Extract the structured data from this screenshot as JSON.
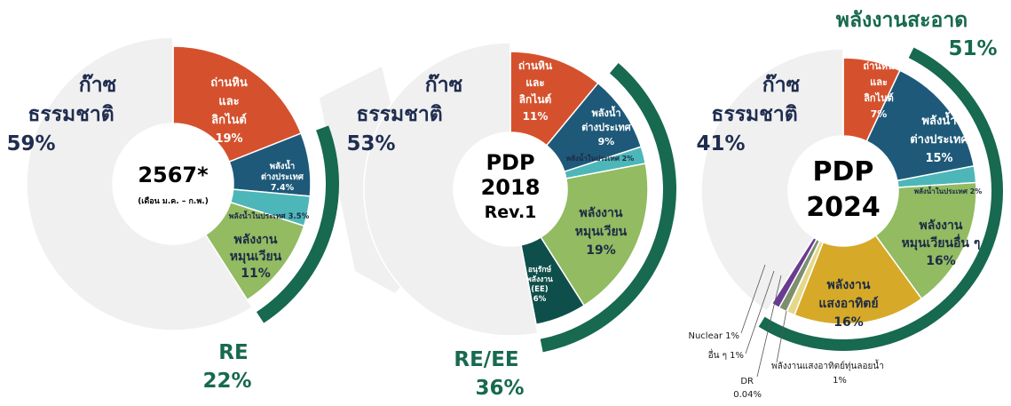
{
  "colors": {
    "gas": "#f0f0f0",
    "coal": "#d5512d",
    "hydro_import": "#1e5979",
    "hydro_domestic": "#4db6b8",
    "re": "#92bb62",
    "ee": "#0f4f4b",
    "solar": "#d6a928",
    "nuclear": "#6a3c91",
    "other": "#7c9070",
    "dr": "#b8c9a0",
    "floating_solar": "#e6d88a",
    "outer_ring": "#17694f",
    "dark_text": "#1f2d4f"
  },
  "chart_data": [
    {
      "type": "pie",
      "center_lines": [
        "2567*",
        "(เดือน ม.ค. – ก.พ.)"
      ],
      "slices": [
        {
          "label_lines": [
            "ถ่านหิน",
            "และ",
            "ลิกไนต์",
            "19%"
          ],
          "value": 19,
          "color_key": "coal"
        },
        {
          "label_lines": [
            "พลังน้ำ",
            "ต่างประเทศ",
            "7.4%"
          ],
          "value": 7.4,
          "color_key": "hydro_import"
        },
        {
          "label_lines": [
            "พลังน้ำในประเทศ 3.5%"
          ],
          "value": 3.5,
          "color_key": "hydro_domestic"
        },
        {
          "label_lines": [
            "พลังงาน",
            "หมุนเวียน",
            "11%"
          ],
          "value": 11,
          "color_key": "re"
        },
        {
          "label_lines": [],
          "value": 59,
          "color_key": "gas"
        }
      ],
      "outside_labels": {
        "gas": [
          "ก๊าซ",
          "ธรรมชาติ",
          "59%"
        ],
        "ring": [
          "RE",
          "22%"
        ]
      },
      "ring_value": 22
    },
    {
      "type": "pie",
      "center_lines": [
        "PDP",
        "2018",
        "Rev.1"
      ],
      "slices": [
        {
          "label_lines": [
            "ถ่านหิน",
            "และ",
            "ลิกไนต์",
            "11%"
          ],
          "value": 11,
          "color_key": "coal"
        },
        {
          "label_lines": [
            "พลังน้ำ",
            "ต่างประเทศ",
            "9%"
          ],
          "value": 9,
          "color_key": "hydro_import"
        },
        {
          "label_lines": [
            "พลังน้ำในประเทศ 2%"
          ],
          "value": 2,
          "color_key": "hydro_domestic"
        },
        {
          "label_lines": [
            "พลังงาน",
            "หมุนเวียน",
            "19%"
          ],
          "value": 19,
          "color_key": "re"
        },
        {
          "label_lines": [
            "อนุรักษ์",
            "พลังงาน",
            "(EE)",
            "6%"
          ],
          "value": 6,
          "color_key": "ee"
        },
        {
          "label_lines": [],
          "value": 53,
          "color_key": "gas"
        }
      ],
      "outside_labels": {
        "gas": [
          "ก๊าซ",
          "ธรรมชาติ",
          "53%"
        ],
        "ring": [
          "RE/EE",
          "36%"
        ]
      },
      "ring_value": 36
    },
    {
      "type": "pie",
      "center_lines": [
        "PDP",
        "2024"
      ],
      "slices": [
        {
          "label_lines": [
            "ถ่านหิน",
            "และ",
            "ลิกไนต์",
            "7%"
          ],
          "value": 7,
          "color_key": "coal"
        },
        {
          "label_lines": [
            "พลังน้ำ",
            "ต่างประเทศ",
            "15%"
          ],
          "value": 15,
          "color_key": "hydro_import"
        },
        {
          "label_lines": [
            "พลังน้ำในประเทศ 2%"
          ],
          "value": 2,
          "color_key": "hydro_domestic"
        },
        {
          "label_lines": [
            "พลังงาน",
            "หมุนเวียนอื่น ๆ",
            "16%"
          ],
          "value": 16,
          "color_key": "re"
        },
        {
          "label_lines": [
            "พลังงาน",
            "แสงอาทิตย์",
            "16%"
          ],
          "value": 16,
          "color_key": "solar"
        },
        {
          "label_lines": [],
          "value": 1,
          "color_key": "floating_solar"
        },
        {
          "label_lines": [],
          "value": 0.04,
          "color_key": "dr"
        },
        {
          "label_lines": [],
          "value": 1,
          "color_key": "other"
        },
        {
          "label_lines": [],
          "value": 1,
          "color_key": "nuclear"
        },
        {
          "label_lines": [],
          "value": 41,
          "color_key": "gas"
        }
      ],
      "outside_labels": {
        "gas": [
          "ก๊าซ",
          "ธรรมชาติ",
          "41%"
        ],
        "ring": [
          "พลังงานสะอาด",
          "51%"
        ]
      },
      "ring_value": 51,
      "callouts": [
        {
          "text": "Nuclear 1%"
        },
        {
          "text": "อื่น ๆ 1%"
        },
        {
          "text": "DR"
        },
        {
          "text": "0.04%"
        },
        {
          "text": "พลังงานแสงอาทิตย์ทุ่นลอยน้ำ"
        },
        {
          "text": "1%"
        }
      ]
    }
  ]
}
